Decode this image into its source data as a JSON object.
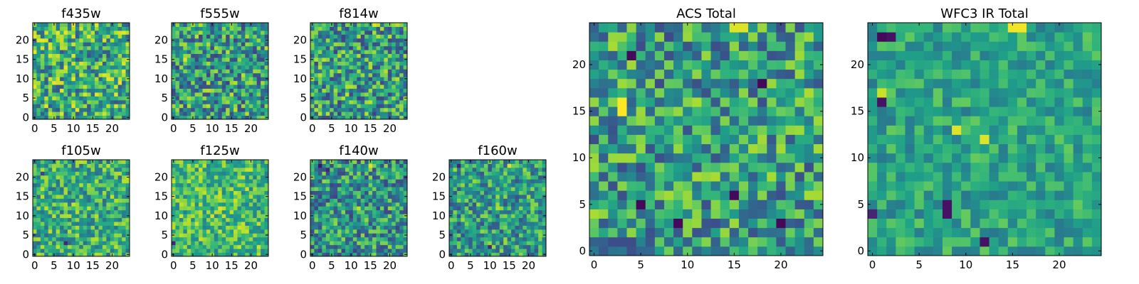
{
  "figure": {
    "colormap": "viridis",
    "colormap_stops": [
      "#440154",
      "#482878",
      "#3e4989",
      "#31688e",
      "#26828e",
      "#1f9e89",
      "#35b779",
      "#6ece58",
      "#b5de2b",
      "#fde725"
    ]
  },
  "chart_data": [
    {
      "type": "heatmap",
      "title": "f435w",
      "grid": [
        25,
        25
      ],
      "xticks": [
        "0",
        "5",
        "10",
        "15",
        "20"
      ],
      "yticks": [
        "0",
        "5",
        "10",
        "15",
        "20"
      ],
      "xlim": [
        0,
        25
      ],
      "ylim": [
        0,
        25
      ],
      "value_level": 0.62,
      "variation": 0.35,
      "seed": 11,
      "hotspots": [],
      "darkspots": []
    },
    {
      "type": "heatmap",
      "title": "f555w",
      "grid": [
        25,
        25
      ],
      "xticks": [
        "0",
        "5",
        "10",
        "15",
        "20"
      ],
      "yticks": [
        "0",
        "5",
        "10",
        "15",
        "20"
      ],
      "xlim": [
        0,
        25
      ],
      "ylim": [
        0,
        25
      ],
      "value_level": 0.55,
      "variation": 0.35,
      "seed": 23,
      "hotspots": [
        [
          3,
          15,
          0.95
        ]
      ],
      "darkspots": []
    },
    {
      "type": "heatmap",
      "title": "f814w",
      "grid": [
        25,
        25
      ],
      "xticks": [
        "0",
        "5",
        "10",
        "15",
        "20"
      ],
      "yticks": [
        "0",
        "5",
        "10",
        "15",
        "20"
      ],
      "xlim": [
        0,
        25
      ],
      "ylim": [
        0,
        25
      ],
      "value_level": 0.55,
      "variation": 0.35,
      "seed": 37,
      "hotspots": [
        [
          3,
          15,
          0.9
        ],
        [
          16,
          24,
          0.95
        ]
      ],
      "darkspots": []
    },
    {
      "type": "heatmap",
      "title": "f105w",
      "grid": [
        25,
        25
      ],
      "xticks": [
        "0",
        "5",
        "10",
        "15",
        "20"
      ],
      "yticks": [
        "0",
        "5",
        "10",
        "15",
        "20"
      ],
      "xlim": [
        0,
        25
      ],
      "ylim": [
        0,
        25
      ],
      "value_level": 0.62,
      "variation": 0.28,
      "seed": 41,
      "hotspots": [
        [
          10,
          13,
          0.92
        ],
        [
          14,
          12,
          0.9
        ]
      ],
      "darkspots": [
        [
          8,
          3,
          0.1
        ],
        [
          2,
          21,
          0.2
        ]
      ]
    },
    {
      "type": "heatmap",
      "title": "f125w",
      "grid": [
        25,
        25
      ],
      "xticks": [
        "0",
        "5",
        "10",
        "15",
        "20"
      ],
      "yticks": [
        "0",
        "5",
        "10",
        "15",
        "20"
      ],
      "xlim": [
        0,
        25
      ],
      "ylim": [
        0,
        25
      ],
      "value_level": 0.68,
      "variation": 0.25,
      "seed": 53,
      "hotspots": [
        [
          12,
          12,
          0.95
        ],
        [
          16,
          14,
          0.92
        ]
      ],
      "darkspots": [
        [
          0,
          3,
          0.1
        ]
      ]
    },
    {
      "type": "heatmap",
      "title": "f140w",
      "grid": [
        25,
        25
      ],
      "xticks": [
        "0",
        "5",
        "10",
        "15",
        "20"
      ],
      "yticks": [
        "0",
        "5",
        "10",
        "15",
        "20"
      ],
      "xlim": [
        0,
        25
      ],
      "ylim": [
        0,
        25
      ],
      "value_level": 0.52,
      "variation": 0.32,
      "seed": 67,
      "hotspots": [
        [
          15,
          23,
          0.95
        ],
        [
          12,
          12,
          0.9
        ]
      ],
      "darkspots": [
        [
          2,
          23,
          0.05
        ],
        [
          4,
          22,
          0.1
        ]
      ]
    },
    {
      "type": "heatmap",
      "title": "f160w",
      "grid": [
        25,
        25
      ],
      "xticks": [
        "0",
        "5",
        "10",
        "15",
        "20"
      ],
      "yticks": [
        "0",
        "5",
        "10",
        "15",
        "20"
      ],
      "xlim": [
        0,
        25
      ],
      "ylim": [
        0,
        25
      ],
      "value_level": 0.55,
      "variation": 0.3,
      "seed": 79,
      "hotspots": [
        [
          15,
          23,
          0.95
        ],
        [
          12,
          12,
          0.88
        ]
      ],
      "darkspots": [
        [
          2,
          23,
          0.1
        ],
        [
          10,
          2,
          0.1
        ]
      ]
    },
    {
      "type": "heatmap",
      "title": "ACS Total",
      "grid": [
        25,
        25
      ],
      "xticks": [
        "0",
        "5",
        "10",
        "15",
        "20"
      ],
      "yticks": [
        "0",
        "5",
        "10",
        "15",
        "20"
      ],
      "xlim": [
        0,
        25
      ],
      "ylim": [
        0,
        25
      ],
      "value_level": 0.55,
      "variation": 0.32,
      "seed": 97,
      "hotspots": [
        [
          3,
          15,
          1.0
        ],
        [
          3,
          16,
          1.0
        ],
        [
          15,
          24,
          0.95
        ],
        [
          16,
          24,
          0.95
        ]
      ],
      "darkspots": [
        [
          4,
          21,
          0.02
        ],
        [
          18,
          18,
          0.02
        ],
        [
          15,
          6,
          0.02
        ],
        [
          5,
          5,
          0.02
        ],
        [
          20,
          3,
          0.02
        ],
        [
          9,
          3,
          0.02
        ]
      ]
    },
    {
      "type": "heatmap",
      "title": "WFC3 IR Total",
      "grid": [
        25,
        25
      ],
      "xticks": [
        "0",
        "5",
        "10",
        "15",
        "20"
      ],
      "yticks": [
        "0",
        "5",
        "10",
        "15",
        "20"
      ],
      "xlim": [
        0,
        25
      ],
      "ylim": [
        0,
        25
      ],
      "value_level": 0.58,
      "variation": 0.18,
      "seed": 113,
      "hotspots": [
        [
          15,
          24,
          0.98
        ],
        [
          16,
          24,
          0.98
        ],
        [
          9,
          13,
          0.95
        ],
        [
          12,
          12,
          0.95
        ],
        [
          1,
          17,
          0.92
        ]
      ],
      "darkspots": [
        [
          1,
          23,
          0.02
        ],
        [
          2,
          23,
          0.05
        ],
        [
          1,
          16,
          0.05
        ],
        [
          8,
          5,
          0.05
        ],
        [
          8,
          4,
          0.05
        ],
        [
          12,
          1,
          0.05
        ],
        [
          0,
          4,
          0.1
        ]
      ]
    }
  ]
}
